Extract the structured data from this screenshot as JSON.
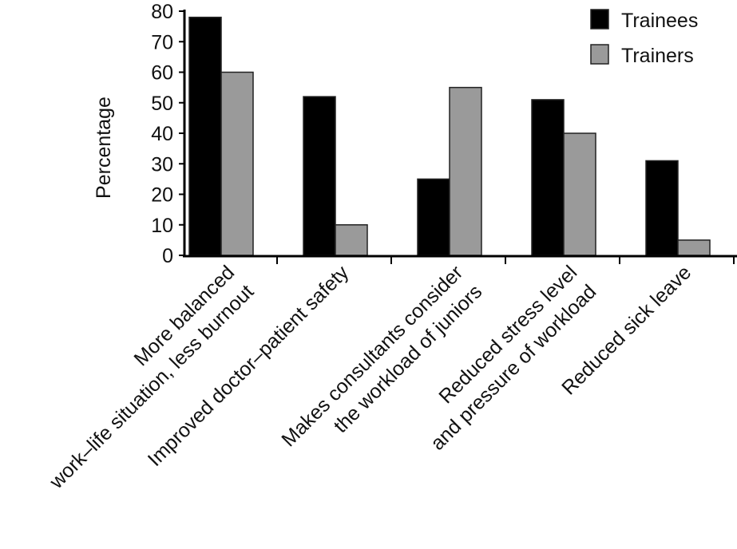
{
  "chart_data": {
    "type": "bar",
    "title": "",
    "xlabel": "",
    "ylabel": "Percentage",
    "ylim": [
      0,
      80
    ],
    "yticks": [
      0,
      10,
      20,
      30,
      40,
      50,
      60,
      70,
      80
    ],
    "categories": [
      [
        "More balanced",
        "work–life situation, less burnout"
      ],
      [
        "Improved doctor–patient safety"
      ],
      [
        "Makes consultants consider",
        "the workload of juniors"
      ],
      [
        "Reduced stress level",
        "and pressure of workload"
      ],
      [
        "Reduced sick leave"
      ]
    ],
    "series": [
      {
        "name": "Trainees",
        "color": "#000000",
        "values": [
          78,
          52,
          25,
          51,
          31
        ]
      },
      {
        "name": "Trainers",
        "color": "#9a9a9a",
        "values": [
          60,
          10,
          55,
          40,
          5
        ]
      }
    ],
    "legend_position": "top-right",
    "grid": false
  }
}
